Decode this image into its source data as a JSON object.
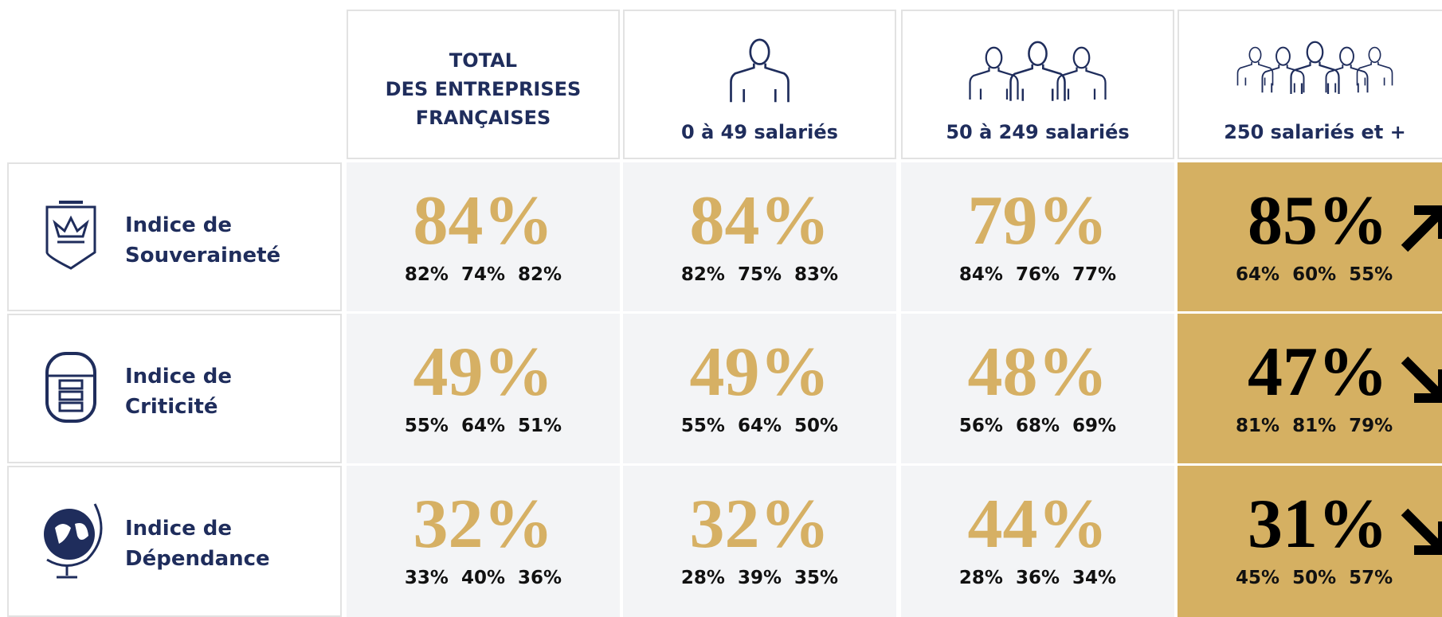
{
  "header": {
    "columns": [
      "TOTAL\nDES ENTREPRISES\nFRANÇAISES",
      "0 à 49 salariés",
      "50 à 249 salariés",
      "250 salariés et +"
    ]
  },
  "rows": [
    {
      "label": "Indice de\nSouveraineté",
      "trend": "up",
      "cells": [
        {
          "main": "84%",
          "subs": [
            "82%",
            "74%",
            "82%"
          ]
        },
        {
          "main": "84%",
          "subs": [
            "82%",
            "75%",
            "83%"
          ]
        },
        {
          "main": "79%",
          "subs": [
            "84%",
            "76%",
            "77%"
          ]
        },
        {
          "main": "85%",
          "subs": [
            "64%",
            "60%",
            "55%"
          ]
        }
      ]
    },
    {
      "label": "Indice de\nCriticité",
      "trend": "down",
      "cells": [
        {
          "main": "49%",
          "subs": [
            "55%",
            "64%",
            "51%"
          ]
        },
        {
          "main": "49%",
          "subs": [
            "55%",
            "64%",
            "50%"
          ]
        },
        {
          "main": "48%",
          "subs": [
            "56%",
            "68%",
            "69%"
          ]
        },
        {
          "main": "47%",
          "subs": [
            "81%",
            "81%",
            "79%"
          ]
        }
      ]
    },
    {
      "label": "Indice de\nDépendance",
      "trend": "down",
      "cells": [
        {
          "main": "32%",
          "subs": [
            "33%",
            "40%",
            "36%"
          ]
        },
        {
          "main": "32%",
          "subs": [
            "28%",
            "39%",
            "35%"
          ]
        },
        {
          "main": "44%",
          "subs": [
            "28%",
            "36%",
            "34%"
          ]
        },
        {
          "main": "31%",
          "subs": [
            "45%",
            "50%",
            "57%"
          ]
        }
      ]
    }
  ]
}
